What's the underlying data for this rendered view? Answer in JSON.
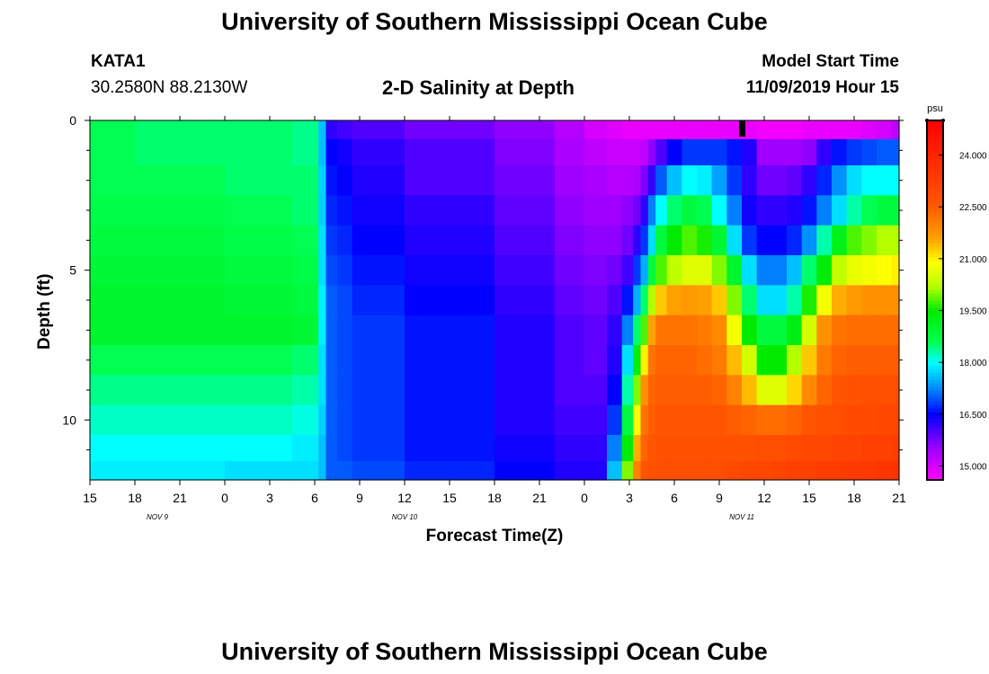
{
  "header": {
    "title_top": "University of Southern Mississippi Ocean Cube",
    "title_bottom": "University of Southern Mississippi Ocean Cube",
    "station_id": "KATA1",
    "coordinates": "30.2580N 88.2130W",
    "chart_title": "2-D Salinity at Depth",
    "model_start_label": "Model Start Time",
    "model_start_value": "11/09/2019 Hour 15"
  },
  "chart_data": {
    "type": "heatmap",
    "title": "2-D Salinity at Depth",
    "xlabel": "Forecast Time(Z)",
    "ylabel": "Depth (ft)",
    "x_tick_labels": [
      "15",
      "18",
      "21",
      "0",
      "3",
      "6",
      "9",
      "12",
      "15",
      "18",
      "21",
      "0",
      "3",
      "6",
      "9",
      "12",
      "15",
      "18",
      "21"
    ],
    "date_labels": [
      "NOV 9",
      "NOV 10",
      "NOV 11"
    ],
    "y_ticks": [
      0,
      5,
      10
    ],
    "y_minor_ticks": [
      1,
      2,
      3,
      4,
      6,
      7,
      8,
      9,
      11
    ],
    "ylim": [
      0,
      12
    ],
    "colorbar": {
      "unit": "psu",
      "range": [
        14.6,
        25.0
      ],
      "tick_labels": [
        "24.000",
        "22.500",
        "21.000",
        "19.500",
        "18.000",
        "16.500",
        "15.000"
      ],
      "tick_values": [
        24.0,
        22.5,
        21.0,
        19.5,
        18.0,
        16.5,
        15.0
      ]
    },
    "depth_levels_ft": [
      0.25,
      1,
      2,
      3,
      4,
      5,
      6,
      7,
      8,
      9,
      10,
      11,
      11.75
    ],
    "time_hours_from_start": [
      0,
      6,
      12,
      15,
      15.5,
      16,
      17,
      18,
      24,
      30,
      32,
      34,
      35,
      36,
      36.5,
      37,
      37.5,
      38,
      39,
      40,
      41,
      42,
      43,
      44,
      45,
      46,
      47,
      48,
      49,
      50,
      51,
      52,
      53,
      54
    ],
    "salinity_psu": [
      [
        18.6,
        18.5,
        18.5,
        18.4,
        17.6,
        16.2,
        16.1,
        16.0,
        15.8,
        15.6,
        15.3,
        15.0,
        14.9,
        14.8,
        14.8,
        14.8,
        14.8,
        14.8,
        14.8,
        14.8,
        14.8,
        14.8,
        14.8,
        14.8,
        14.7,
        14.7,
        14.7,
        14.8,
        14.8,
        14.8,
        14.8,
        14.9,
        15.0,
        15.2
      ],
      [
        18.6,
        18.5,
        18.5,
        18.4,
        17.6,
        16.5,
        16.4,
        16.2,
        16.0,
        15.7,
        15.4,
        15.2,
        15.1,
        15.1,
        15.1,
        15.2,
        15.6,
        16.0,
        16.5,
        16.8,
        16.8,
        16.8,
        16.6,
        16.3,
        15.5,
        15.5,
        15.5,
        15.6,
        16.2,
        16.6,
        16.8,
        16.9,
        17.0,
        17.0
      ],
      [
        18.6,
        18.6,
        18.5,
        18.5,
        17.7,
        16.6,
        16.5,
        16.3,
        16.0,
        15.8,
        15.5,
        15.4,
        15.3,
        15.3,
        15.4,
        15.7,
        16.2,
        17.0,
        17.6,
        18.0,
        17.9,
        17.4,
        16.8,
        16.2,
        15.8,
        15.8,
        15.9,
        16.2,
        16.7,
        17.3,
        17.8,
        18.0,
        18.0,
        18.0
      ],
      [
        18.7,
        18.7,
        18.6,
        18.5,
        17.7,
        16.7,
        16.6,
        16.4,
        16.2,
        15.9,
        15.6,
        15.5,
        15.5,
        15.6,
        15.8,
        16.2,
        17.2,
        18.0,
        18.5,
        18.8,
        18.6,
        18.0,
        17.2,
        16.4,
        16.2,
        16.2,
        16.3,
        16.6,
        17.2,
        17.8,
        18.3,
        18.6,
        18.8,
        18.8
      ],
      [
        18.8,
        18.8,
        18.7,
        18.6,
        17.8,
        16.8,
        16.7,
        16.5,
        16.3,
        16.0,
        15.7,
        15.6,
        15.6,
        15.8,
        16.2,
        16.8,
        17.8,
        18.8,
        19.5,
        19.8,
        19.6,
        18.9,
        17.8,
        16.8,
        16.5,
        16.5,
        16.7,
        17.3,
        18.3,
        19.2,
        19.8,
        20.0,
        20.2,
        20.2
      ],
      [
        18.9,
        18.9,
        18.8,
        18.7,
        17.8,
        16.9,
        16.8,
        16.6,
        16.4,
        16.1,
        15.8,
        15.7,
        15.8,
        16.1,
        16.8,
        17.5,
        18.8,
        19.8,
        20.3,
        20.6,
        20.6,
        20.0,
        19.0,
        17.8,
        17.2,
        17.2,
        17.6,
        18.5,
        19.4,
        20.3,
        20.7,
        20.8,
        20.9,
        21.0
      ],
      [
        19.0,
        19.0,
        18.9,
        18.8,
        17.9,
        17.0,
        16.9,
        16.7,
        16.5,
        16.2,
        15.9,
        15.8,
        16.0,
        16.6,
        17.5,
        18.5,
        20.2,
        21.3,
        21.6,
        21.7,
        21.6,
        21.3,
        20.0,
        18.5,
        17.8,
        17.8,
        18.3,
        19.6,
        20.8,
        21.5,
        21.7,
        21.8,
        21.8,
        21.8
      ],
      [
        19.0,
        19.0,
        19.0,
        18.9,
        17.9,
        17.0,
        16.9,
        16.8,
        16.6,
        16.3,
        16.0,
        15.9,
        16.2,
        17.2,
        18.5,
        19.8,
        21.6,
        22.2,
        22.2,
        22.2,
        22.1,
        21.9,
        20.8,
        19.5,
        18.8,
        18.8,
        19.3,
        20.5,
        21.8,
        22.2,
        22.3,
        22.3,
        22.3,
        22.3
      ],
      [
        18.6,
        18.6,
        18.6,
        18.5,
        17.8,
        17.0,
        16.9,
        16.8,
        16.6,
        16.3,
        16.0,
        15.9,
        16.3,
        17.8,
        19.3,
        21.0,
        22.2,
        22.4,
        22.4,
        22.4,
        22.3,
        22.1,
        21.4,
        20.5,
        19.5,
        19.5,
        20.2,
        21.3,
        22.1,
        22.4,
        22.5,
        22.5,
        22.5,
        22.5
      ],
      [
        18.4,
        18.4,
        18.4,
        18.3,
        17.8,
        17.0,
        16.9,
        16.8,
        16.6,
        16.3,
        16.0,
        16.0,
        16.5,
        18.3,
        20.0,
        21.8,
        22.4,
        22.5,
        22.5,
        22.5,
        22.5,
        22.4,
        22.0,
        21.4,
        20.6,
        20.6,
        21.2,
        21.9,
        22.4,
        22.6,
        22.7,
        22.8,
        22.8,
        22.8
      ],
      [
        18.2,
        18.2,
        18.2,
        18.1,
        17.7,
        17.0,
        16.9,
        16.8,
        16.6,
        16.3,
        16.1,
        16.1,
        16.8,
        18.8,
        20.8,
        22.2,
        22.5,
        22.6,
        22.6,
        22.6,
        22.6,
        22.6,
        22.5,
        22.4,
        22.3,
        22.3,
        22.4,
        22.6,
        22.7,
        22.8,
        22.9,
        22.9,
        23.0,
        23.0
      ],
      [
        18.0,
        18.0,
        18.0,
        17.9,
        17.6,
        17.0,
        16.9,
        16.8,
        16.6,
        16.4,
        16.2,
        16.2,
        17.2,
        19.4,
        21.5,
        22.4,
        22.6,
        22.7,
        22.7,
        22.7,
        22.7,
        22.7,
        22.7,
        22.7,
        22.8,
        22.8,
        22.9,
        23.0,
        23.0,
        23.1,
        23.1,
        23.2,
        23.2,
        23.3
      ],
      [
        17.9,
        17.9,
        17.8,
        17.8,
        17.6,
        17.0,
        17.0,
        16.9,
        16.7,
        16.5,
        16.3,
        16.3,
        17.6,
        20.0,
        22.0,
        22.6,
        22.7,
        22.8,
        22.8,
        22.8,
        22.8,
        22.8,
        22.9,
        23.0,
        23.0,
        23.1,
        23.2,
        23.2,
        23.3,
        23.3,
        23.4,
        23.4,
        23.5,
        23.6
      ]
    ],
    "current_time_marker_hours": 43.5
  }
}
